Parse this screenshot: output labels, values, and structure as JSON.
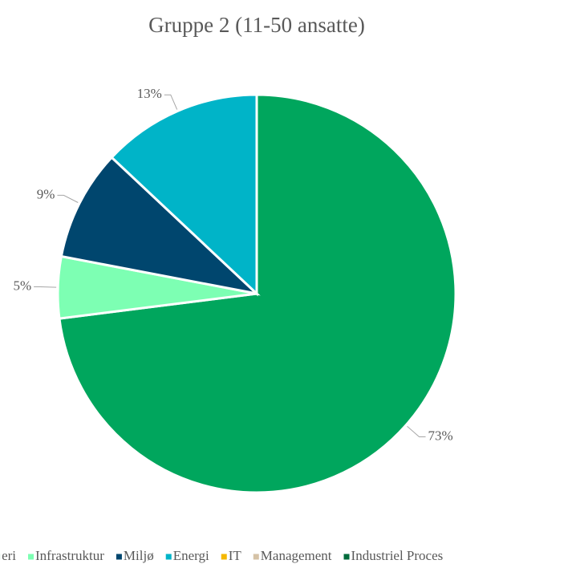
{
  "chart_data": {
    "type": "pie",
    "title": "Gruppe 2 (11-50 ansatte)",
    "categories": [
      "eri",
      "Infrastruktur",
      "Miljø",
      "Energi",
      "IT",
      "Management",
      "Industriel Proces"
    ],
    "values": [
      73,
      5,
      9,
      13,
      0,
      0,
      0
    ],
    "value_labels": [
      "73%",
      "5%",
      "9%",
      "13%",
      null,
      null,
      null
    ],
    "colors": [
      "#00a65d",
      "#7dffb3",
      "#00466e",
      "#00b4c8",
      "#f5b800",
      "#d5c2a6",
      "#006b3c"
    ],
    "legend": "bottom"
  }
}
